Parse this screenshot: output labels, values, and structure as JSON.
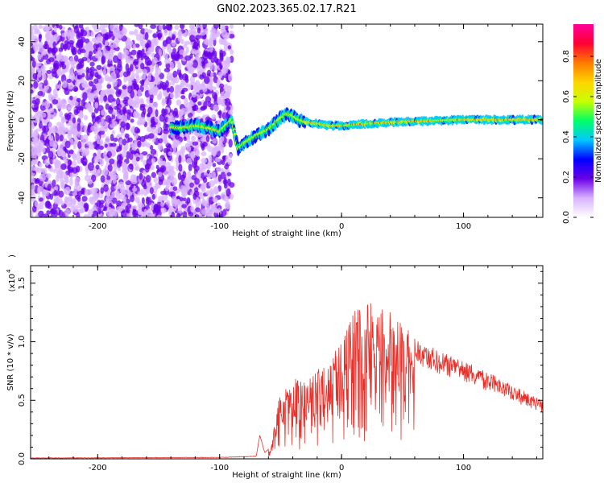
{
  "figure": {
    "title": "GN02.2023.365.02.17.R21"
  },
  "chart_data": [
    {
      "type": "heatmap",
      "xlabel": "Height of straight line (km)",
      "ylabel": "Frequency (Hz)",
      "xlim": [
        -255,
        165
      ],
      "ylim": [
        -50,
        49
      ],
      "xticks": [
        -200,
        -100,
        0,
        100
      ],
      "yticks": [
        -40,
        -20,
        0,
        20,
        40
      ],
      "colorbar": {
        "label": "Normalized spectral amplitude",
        "ticks": [
          0.0,
          0.2,
          0.4,
          0.6,
          0.8
        ],
        "range": [
          0,
          0.96
        ],
        "colors": [
          "#ffffff",
          "#d9b3ff",
          "#6a00e8",
          "#0000ff",
          "#00c8ff",
          "#00ff66",
          "#c8ff00",
          "#ffd400",
          "#ff7a00",
          "#ff0033",
          "#ff0099"
        ]
      },
      "ridge": {
        "x": [
          -140,
          -130,
          -120,
          -110,
          -100,
          -95,
          -90,
          -85,
          -80,
          -75,
          -70,
          -60,
          -50,
          -45,
          -40,
          -35,
          -30,
          -20,
          -10,
          0,
          20,
          50,
          100,
          160
        ],
        "y": [
          -4,
          -4,
          -3,
          -4,
          -6,
          -3,
          0,
          -15,
          -12,
          -10,
          -8,
          -5,
          1,
          3,
          2,
          0,
          -1,
          -2,
          -3,
          -3,
          -2,
          -1,
          0,
          0
        ]
      }
    },
    {
      "type": "line",
      "xlabel": "Height of straight line (km)",
      "ylabel": "SNR (10 * v/v)",
      "yscale_label": "(x10",
      "yscale_exp": "4",
      "xlim": [
        -255,
        165
      ],
      "ylim": [
        0,
        1.65
      ],
      "xticks": [
        -200,
        -100,
        0,
        100
      ],
      "yticks": [
        0.0,
        0.5,
        1.0,
        1.5
      ],
      "color": "#e8302a",
      "envelope": {
        "x": [
          -255,
          -100,
          -70,
          -67,
          -63,
          -58,
          -55,
          -50,
          -40,
          -30,
          -20,
          -10,
          0,
          10,
          20,
          30,
          40,
          50,
          60,
          80,
          100,
          120,
          140,
          165
        ],
        "y": [
          0.005,
          0.01,
          0.02,
          0.2,
          0.05,
          0.1,
          0.3,
          0.6,
          0.7,
          0.65,
          0.75,
          0.9,
          1.05,
          1.3,
          1.4,
          1.38,
          1.25,
          1.15,
          1.05,
          0.92,
          0.85,
          0.74,
          0.63,
          0.5
        ]
      }
    }
  ]
}
